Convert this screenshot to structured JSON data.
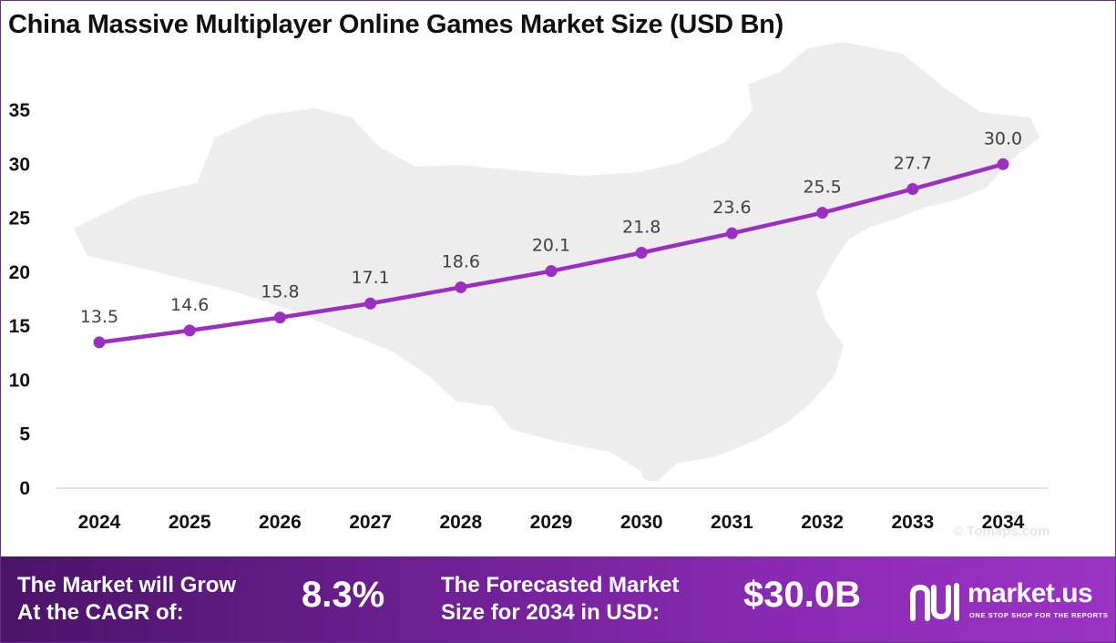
{
  "title": "China Massive Multiplayer Online Games Market Size (USD Bn)",
  "watermark": "© Tomaps.com",
  "colors": {
    "line": "#9a2fc0",
    "marker": "#9a2fc0",
    "banner_start": "#4b1467",
    "banner_end": "#9b33c4",
    "map": "#ececec",
    "axis": "#d9d9d9"
  },
  "chart_data": {
    "type": "line",
    "title": "China Massive Multiplayer Online Games Market Size (USD Bn)",
    "categories": [
      "2024",
      "2025",
      "2026",
      "2027",
      "2028",
      "2029",
      "2030",
      "2031",
      "2032",
      "2033",
      "2034"
    ],
    "series": [
      {
        "values": [
          13.5,
          14.6,
          15.8,
          17.1,
          18.6,
          20.1,
          21.8,
          23.6,
          25.5,
          27.7,
          30.0
        ]
      }
    ],
    "data_labels": [
      "13.5",
      "14.6",
      "15.8",
      "17.1",
      "18.6",
      "20.1",
      "21.8",
      "23.6",
      "25.5",
      "27.7",
      "30.0"
    ],
    "yticks": [
      "0",
      "5",
      "10",
      "15",
      "20",
      "25",
      "30",
      "35"
    ],
    "ylim": [
      0,
      35
    ],
    "grid": false,
    "legend": "none"
  },
  "banner": {
    "cagr_label": "The Market will Grow At the CAGR of:",
    "cagr_line1": "The Market will Grow",
    "cagr_line2": "At the CAGR of:",
    "cagr_value": "8.3%",
    "forecast_line1": "The Forecasted Market",
    "forecast_line2": "Size for 2034 in USD:",
    "forecast_value": "$30.0B"
  },
  "logo": {
    "name": "market.us",
    "tagline": "ONE STOP SHOP FOR THE REPORTS",
    "icon": "market-us-logo-icon"
  }
}
